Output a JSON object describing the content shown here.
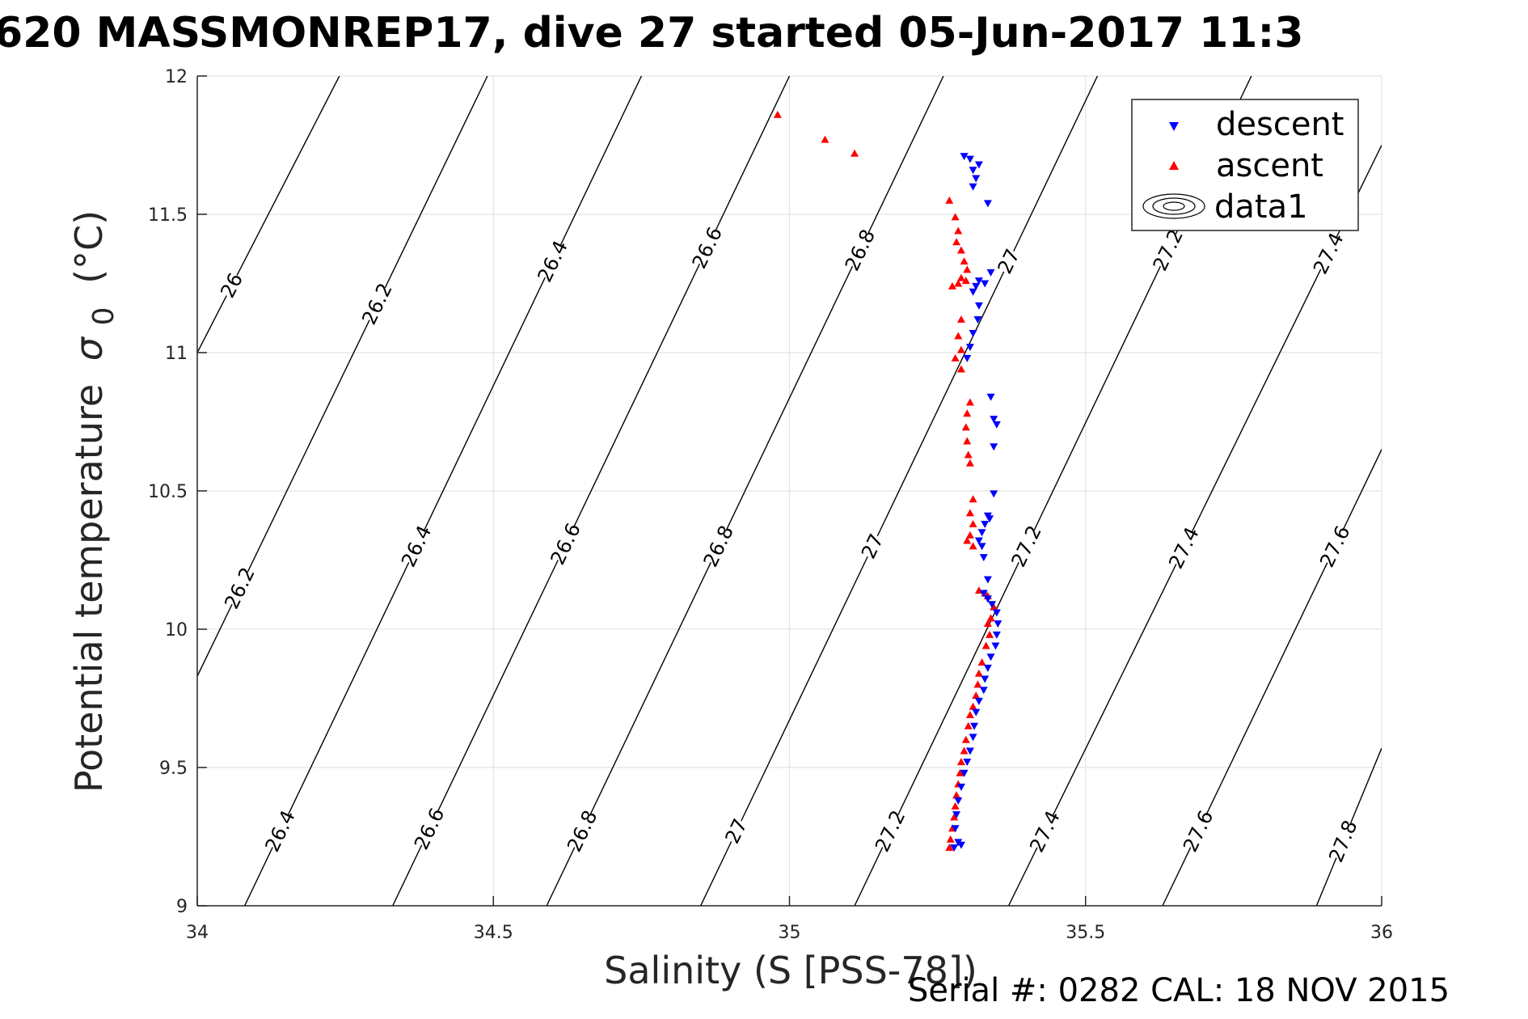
{
  "chart_data": {
    "type": "scatter",
    "title": "620 MASSMONREP17, dive 27 started 05-Jun-2017 11:3",
    "xlabel": "Salinity (S [PSS-78])",
    "ylabel_main": "Potential temperature",
    "ylabel_sigma": "σ",
    "ylabel_sub": "0",
    "ylabel_unit": "(°C)",
    "xlim": [
      34,
      36
    ],
    "ylim": [
      9,
      12
    ],
    "xticks": [
      34,
      34.5,
      35,
      35.5,
      36
    ],
    "xtick_labels": [
      "34",
      "34.5",
      "35",
      "35.5",
      "36"
    ],
    "yticks": [
      9,
      9.5,
      10,
      10.5,
      11,
      11.5,
      12
    ],
    "ytick_labels": [
      "9",
      "9.5",
      "10",
      "10.5",
      "11",
      "11.5",
      "12"
    ],
    "grid": true,
    "footer": "Serial #: 0282  CAL: 18 NOV 2015",
    "legend": {
      "placement": "top-right",
      "entries": [
        "descent",
        "ascent",
        "data1"
      ]
    },
    "colors": {
      "descent": "#0000ff",
      "ascent": "#ff0000",
      "contour": "#000000"
    },
    "contours": [
      {
        "label": "26",
        "points": [
          [
            34.0,
            11.0
          ],
          [
            34.24,
            12.0
          ]
        ],
        "label_at": [
          [
            34.07,
            11.23
          ]
        ]
      },
      {
        "label": "26.2",
        "points": [
          [
            34.0,
            9.83
          ],
          [
            34.49,
            12.0
          ]
        ],
        "label_at": [
          [
            34.07,
            10.15
          ],
          [
            34.3,
            11.18
          ]
        ]
      },
      {
        "label": "26.4",
        "points": [
          [
            34.08,
            9.0
          ],
          [
            34.75,
            12.0
          ]
        ],
        "label_at": [
          [
            34.14,
            9.27
          ],
          [
            34.37,
            10.3
          ],
          [
            34.6,
            11.33
          ]
        ]
      },
      {
        "label": "26.6",
        "points": [
          [
            34.33,
            9.0
          ],
          [
            35.0,
            12.0
          ]
        ],
        "label_at": [
          [
            34.4,
            9.27
          ],
          [
            34.63,
            10.3
          ],
          [
            34.86,
            11.38
          ]
        ]
      },
      {
        "label": "26.8",
        "points": [
          [
            34.59,
            9.0
          ],
          [
            35.26,
            12.0
          ]
        ],
        "label_at": [
          [
            34.65,
            9.27
          ],
          [
            34.88,
            10.3
          ],
          [
            35.11,
            11.38
          ]
        ]
      },
      {
        "label": "27",
        "points": [
          [
            34.85,
            9.0
          ],
          [
            35.52,
            12.0
          ]
        ],
        "label_at": [
          [
            34.91,
            9.27
          ],
          [
            35.14,
            10.3
          ],
          [
            35.37,
            11.33
          ]
        ]
      },
      {
        "label": "27.2",
        "points": [
          [
            35.11,
            9.0
          ],
          [
            35.78,
            12.0
          ]
        ],
        "label_at": [
          [
            35.17,
            9.27
          ],
          [
            35.4,
            10.3
          ],
          [
            35.63,
            11.38
          ]
        ]
      },
      {
        "label": "27.4",
        "points": [
          [
            35.37,
            9.0
          ],
          [
            36.0,
            11.75
          ]
        ],
        "label_at": [
          [
            35.43,
            9.27
          ],
          [
            35.66,
            10.3
          ],
          [
            35.89,
            11.38
          ]
        ]
      },
      {
        "label": "27.6",
        "points": [
          [
            35.63,
            9.0
          ],
          [
            36.0,
            10.65
          ]
        ],
        "label_at": [
          [
            35.69,
            9.27
          ],
          [
            35.92,
            10.3
          ]
        ]
      },
      {
        "label": "27.8",
        "points": [
          [
            35.89,
            9.0
          ],
          [
            36.0,
            9.57
          ]
        ],
        "label_at": [
          [
            35.95,
            9.22
          ]
        ]
      }
    ],
    "series": [
      {
        "name": "descent",
        "marker": "triangle-down",
        "points": [
          [
            35.295,
            11.71
          ],
          [
            35.305,
            11.7
          ],
          [
            35.31,
            11.66
          ],
          [
            35.32,
            11.68
          ],
          [
            35.315,
            11.63
          ],
          [
            35.31,
            11.6
          ],
          [
            35.335,
            11.54
          ],
          [
            35.32,
            11.26
          ],
          [
            35.33,
            11.25
          ],
          [
            35.315,
            11.24
          ],
          [
            35.34,
            11.29
          ],
          [
            35.31,
            11.22
          ],
          [
            35.32,
            11.17
          ],
          [
            35.318,
            11.12
          ],
          [
            35.31,
            11.07
          ],
          [
            35.305,
            11.02
          ],
          [
            35.3,
            10.98
          ],
          [
            35.34,
            10.84
          ],
          [
            35.345,
            10.76
          ],
          [
            35.35,
            10.74
          ],
          [
            35.345,
            10.66
          ],
          [
            35.345,
            10.49
          ],
          [
            35.335,
            10.41
          ],
          [
            35.338,
            10.4
          ],
          [
            35.33,
            10.38
          ],
          [
            35.325,
            10.35
          ],
          [
            35.32,
            10.32
          ],
          [
            35.325,
            10.3
          ],
          [
            35.328,
            10.26
          ],
          [
            35.335,
            10.18
          ],
          [
            35.328,
            10.13
          ],
          [
            35.335,
            10.11
          ],
          [
            35.342,
            10.09
          ],
          [
            35.35,
            10.06
          ],
          [
            35.352,
            10.02
          ],
          [
            35.35,
            9.98
          ],
          [
            35.348,
            9.94
          ],
          [
            35.34,
            9.9
          ],
          [
            35.335,
            9.86
          ],
          [
            35.33,
            9.82
          ],
          [
            35.328,
            9.78
          ],
          [
            35.32,
            9.74
          ],
          [
            35.315,
            9.7
          ],
          [
            35.312,
            9.65
          ],
          [
            35.31,
            9.61
          ],
          [
            35.305,
            9.56
          ],
          [
            35.3,
            9.52
          ],
          [
            35.295,
            9.48
          ],
          [
            35.29,
            9.43
          ],
          [
            35.285,
            9.38
          ],
          [
            35.282,
            9.33
          ],
          [
            35.28,
            9.28
          ],
          [
            35.285,
            9.23
          ],
          [
            35.29,
            9.22
          ],
          [
            35.278,
            9.21
          ]
        ]
      },
      {
        "name": "ascent",
        "marker": "triangle-up",
        "points": [
          [
            34.98,
            11.86
          ],
          [
            35.06,
            11.77
          ],
          [
            35.11,
            11.72
          ],
          [
            35.27,
            11.55
          ],
          [
            35.28,
            11.49
          ],
          [
            35.285,
            11.44
          ],
          [
            35.282,
            11.4
          ],
          [
            35.29,
            11.37
          ],
          [
            35.295,
            11.33
          ],
          [
            35.3,
            11.3
          ],
          [
            35.29,
            11.27
          ],
          [
            35.275,
            11.24
          ],
          [
            35.285,
            11.25
          ],
          [
            35.298,
            11.26
          ],
          [
            35.29,
            11.12
          ],
          [
            35.285,
            11.06
          ],
          [
            35.29,
            11.01
          ],
          [
            35.28,
            10.98
          ],
          [
            35.29,
            10.94
          ],
          [
            35.305,
            10.82
          ],
          [
            35.3,
            10.78
          ],
          [
            35.298,
            10.73
          ],
          [
            35.3,
            10.68
          ],
          [
            35.302,
            10.63
          ],
          [
            35.305,
            10.6
          ],
          [
            35.31,
            10.47
          ],
          [
            35.305,
            10.42
          ],
          [
            35.31,
            10.38
          ],
          [
            35.305,
            10.34
          ],
          [
            35.3,
            10.32
          ],
          [
            35.31,
            10.3
          ],
          [
            35.32,
            10.14
          ],
          [
            35.33,
            10.13
          ],
          [
            35.335,
            10.12
          ],
          [
            35.345,
            10.08
          ],
          [
            35.34,
            10.04
          ],
          [
            35.335,
            10.02
          ],
          [
            35.338,
            9.98
          ],
          [
            35.332,
            9.94
          ],
          [
            35.325,
            9.88
          ],
          [
            35.32,
            9.84
          ],
          [
            35.318,
            9.8
          ],
          [
            35.315,
            9.76
          ],
          [
            35.31,
            9.72
          ],
          [
            35.305,
            9.69
          ],
          [
            35.302,
            9.65
          ],
          [
            35.298,
            9.6
          ],
          [
            35.295,
            9.56
          ],
          [
            35.29,
            9.52
          ],
          [
            35.288,
            9.48
          ],
          [
            35.285,
            9.44
          ],
          [
            35.282,
            9.4
          ],
          [
            35.28,
            9.36
          ],
          [
            35.278,
            9.32
          ],
          [
            35.275,
            9.28
          ],
          [
            35.272,
            9.24
          ],
          [
            35.27,
            9.21
          ]
        ]
      }
    ]
  }
}
